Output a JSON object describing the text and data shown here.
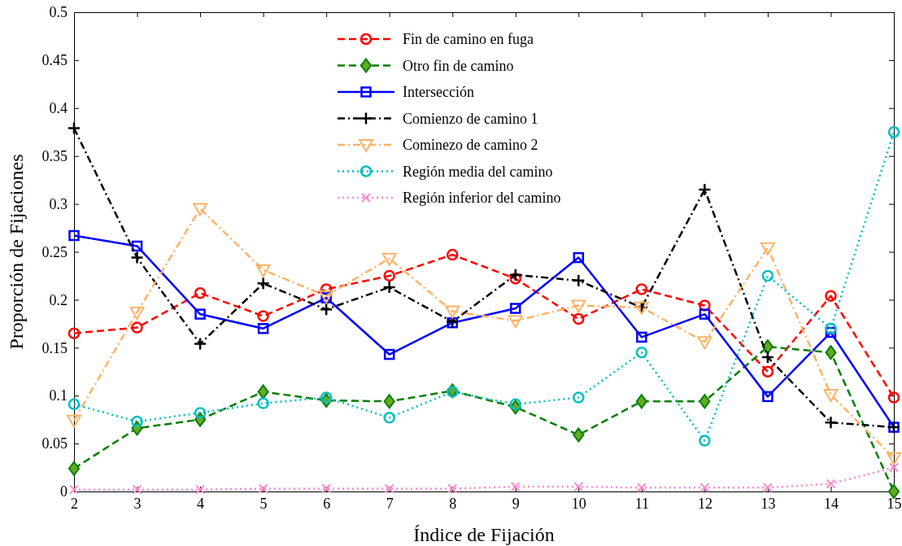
{
  "chart_data": {
    "type": "line",
    "xlabel": "Índice de Fijación",
    "ylabel": "Proporción de Fijaciones",
    "x": [
      2,
      3,
      4,
      5,
      6,
      7,
      8,
      9,
      10,
      11,
      12,
      13,
      14,
      15
    ],
    "xlim": [
      2,
      15
    ],
    "xticks": [
      2,
      3,
      4,
      5,
      6,
      7,
      8,
      9,
      10,
      11,
      12,
      13,
      14,
      15
    ],
    "ylim": [
      0,
      0.5
    ],
    "yticks": [
      0,
      0.05,
      0.1,
      0.15,
      0.2,
      0.25,
      0.3,
      0.35,
      0.4,
      0.45,
      0.5
    ],
    "grid": false,
    "legend": "top",
    "series": [
      {
        "name": "Fin de camino en fuga",
        "color": "#ff0000",
        "marker": "circle",
        "line_style": "dashed",
        "values": [
          0.165,
          0.171,
          0.207,
          0.183,
          0.211,
          0.225,
          0.247,
          0.222,
          0.18,
          0.211,
          0.194,
          0.125,
          0.204,
          0.098
        ]
      },
      {
        "name": "Otro fin de camino",
        "color": "#007f00",
        "marker": "diamond",
        "line_style": "dashed",
        "values": [
          0.024,
          0.066,
          0.075,
          0.104,
          0.095,
          0.094,
          0.105,
          0.088,
          0.059,
          0.094,
          0.094,
          0.151,
          0.145,
          0
        ]
      },
      {
        "name": "Intersección",
        "color": "#0000ff",
        "marker": "square",
        "line_style": "solid",
        "values": [
          0.267,
          0.256,
          0.185,
          0.17,
          0.202,
          0.143,
          0.176,
          0.191,
          0.244,
          0.161,
          0.185,
          0.099,
          0.166,
          0.067
        ]
      },
      {
        "name": "Comienzo de camino 1",
        "color": "#000000",
        "marker": "cross",
        "line_style": "dashdot",
        "values": [
          0.379,
          0.244,
          0.154,
          0.217,
          0.19,
          0.213,
          0.177,
          0.226,
          0.22,
          0.192,
          0.315,
          0.14,
          0.072,
          0.067
        ]
      },
      {
        "name": "Cominezo de camino 2",
        "color": "#ffb266",
        "marker": "triangle",
        "line_style": "dashdot",
        "values": [
          0.074,
          0.187,
          0.295,
          0.231,
          0.204,
          0.243,
          0.188,
          0.178,
          0.194,
          0.192,
          0.156,
          0.254,
          0.101,
          0.035
        ]
      },
      {
        "name": "Región media del camino",
        "color": "#00bfbf",
        "marker": "circle",
        "line_style": "dotted",
        "values": [
          0.091,
          0.073,
          0.082,
          0.092,
          0.098,
          0.077,
          0.104,
          0.091,
          0.098,
          0.145,
          0.053,
          0.225,
          0.17,
          0.375
        ]
      },
      {
        "name": "Región inferior del camino",
        "color": "#ff88cc",
        "marker": "x",
        "line_style": "dotted",
        "values": [
          0.002,
          0.002,
          0.002,
          0.003,
          0.003,
          0.003,
          0.003,
          0.005,
          0.005,
          0.004,
          0.004,
          0.004,
          0.008,
          0.025
        ]
      }
    ]
  }
}
